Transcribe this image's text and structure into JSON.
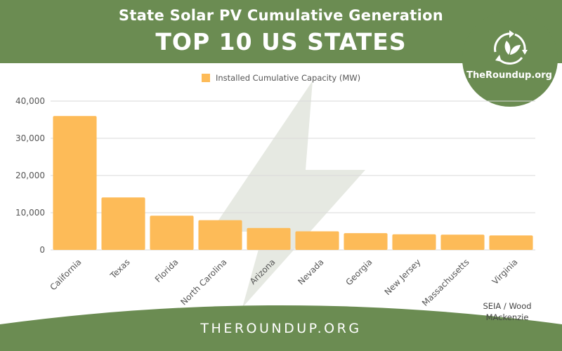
{
  "header": {
    "title": "State Solar PV Cumulative Generation",
    "subtitle": "TOP 10 US STATES"
  },
  "logo": {
    "icon": "recycle-leaf-icon",
    "text": "TheRoundup.org"
  },
  "source": {
    "line1": "SEIA / Wood",
    "line2": "MAckenzie"
  },
  "footer": {
    "text": "THEROUNDUP.ORG"
  },
  "colors": {
    "green": "#6b8c52",
    "bar": "#fdbb58",
    "bolt": "#e6e9e2"
  },
  "chart_data": {
    "type": "bar",
    "categories": [
      "California",
      "Texas",
      "Florida",
      "North Carolina",
      "Arizona",
      "Nevada",
      "Georgia",
      "New Jersey",
      "Massachusetts",
      "Virginia"
    ],
    "series": [
      {
        "name": "Installed Cumulative Capacity (MW)",
        "values": [
          36000,
          14100,
          9200,
          8000,
          5900,
          5000,
          4500,
          4200,
          4100,
          3900
        ]
      }
    ],
    "yticks": [
      "0",
      "10,000",
      "20,000",
      "30,000",
      "40,000"
    ],
    "ylim": [
      0,
      40000
    ],
    "grid": true,
    "legend": "top-center"
  }
}
